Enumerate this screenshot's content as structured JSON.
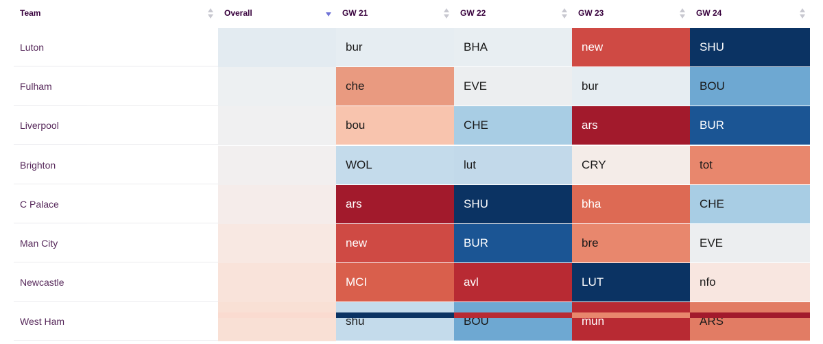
{
  "headers": {
    "team": "Team",
    "overall": "Overall",
    "gameweeks": [
      "GW 21",
      "GW 22",
      "GW 23",
      "GW 24"
    ]
  },
  "colors": {
    "text_dark": "#1a1a1a",
    "text_light": "#ffffff",
    "header_text": "#37003c",
    "sort_inactive": "#c8c8d0",
    "sort_active": "#6f73d6"
  },
  "icons": {
    "sort_inactive": "sort-icon",
    "sort_active": "sort-descending-icon"
  },
  "teams": [
    {
      "name": "Luton",
      "overall_color": "#e3ebf1",
      "fixtures": [
        {
          "label": "bur",
          "color": "#e6edf2",
          "text": "dark"
        },
        {
          "label": "BHA",
          "color": "#e8eef2",
          "text": "dark"
        },
        {
          "label": "new",
          "color": "#cf4a44",
          "text": "light"
        },
        {
          "label": "SHU",
          "color": "#0b3363",
          "text": "light"
        }
      ]
    },
    {
      "name": "Fulham",
      "overall_color": "#edf0f2",
      "fixtures": [
        {
          "label": "che",
          "color": "#e99a80",
          "text": "dark"
        },
        {
          "label": "EVE",
          "color": "#eceef0",
          "text": "dark"
        },
        {
          "label": "bur",
          "color": "#e6edf2",
          "text": "dark"
        },
        {
          "label": "BOU",
          "color": "#6ea8d2",
          "text": "dark"
        }
      ]
    },
    {
      "name": "Liverpool",
      "overall_color": "#f0f0f1",
      "fixtures": [
        {
          "label": "bou",
          "color": "#f8c4ae",
          "text": "dark"
        },
        {
          "label": "CHE",
          "color": "#a8cde4",
          "text": "dark"
        },
        {
          "label": "ars",
          "color": "#a21a2c",
          "text": "light"
        },
        {
          "label": "BUR",
          "color": "#1b5594",
          "text": "light"
        }
      ]
    },
    {
      "name": "Brighton",
      "overall_color": "#f2efef",
      "fixtures": [
        {
          "label": "WOL",
          "color": "#c4dbeb",
          "text": "dark"
        },
        {
          "label": "lut",
          "color": "#c2d9ea",
          "text": "dark"
        },
        {
          "label": "CRY",
          "color": "#f4ece8",
          "text": "dark"
        },
        {
          "label": "tot",
          "color": "#e8876d",
          "text": "dark"
        }
      ]
    },
    {
      "name": "C Palace",
      "overall_color": "#f5ecea",
      "fixtures": [
        {
          "label": "ars",
          "color": "#a21a2c",
          "text": "light"
        },
        {
          "label": "SHU",
          "color": "#0b3363",
          "text": "light"
        },
        {
          "label": "bha",
          "color": "#dd6a54",
          "text": "light"
        },
        {
          "label": "CHE",
          "color": "#a8cde4",
          "text": "dark"
        }
      ]
    },
    {
      "name": "Man City",
      "overall_color": "#f8e8e2",
      "fixtures": [
        {
          "label": "new",
          "color": "#cf4a44",
          "text": "light"
        },
        {
          "label": "BUR",
          "color": "#1b5594",
          "text": "light"
        },
        {
          "label": "bre",
          "color": "#e8876d",
          "text": "dark"
        },
        {
          "label": "EVE",
          "color": "#eceef0",
          "text": "dark"
        }
      ]
    },
    {
      "name": "Newcastle",
      "overall_color": "#f9e3da",
      "fixtures": [
        {
          "label": "MCI",
          "color": "#d95f4c",
          "text": "light"
        },
        {
          "label": "avl",
          "color": "#b82a33",
          "text": "light"
        },
        {
          "label": "LUT",
          "color": "#0b3363",
          "text": "light"
        },
        {
          "label": "nfo",
          "color": "#f8e6e0",
          "text": "dark"
        }
      ]
    },
    {
      "name": "West Ham",
      "overall_color": "#f9e0d5",
      "fixtures": [
        {
          "label": "shu",
          "color": "#c4dbeb",
          "text": "dark"
        },
        {
          "label": "BOU",
          "color": "#6ea8d2",
          "text": "dark"
        },
        {
          "label": "mun",
          "color": "#b82a33",
          "text": "light"
        },
        {
          "label": "ARS",
          "color": "#e27c64",
          "text": "dark"
        }
      ]
    }
  ],
  "next_row_colors": [
    "#0b3363",
    "#b82a33",
    "#e8876d",
    "#a21a2c"
  ],
  "next_row_overall_color": "#fadbd0"
}
